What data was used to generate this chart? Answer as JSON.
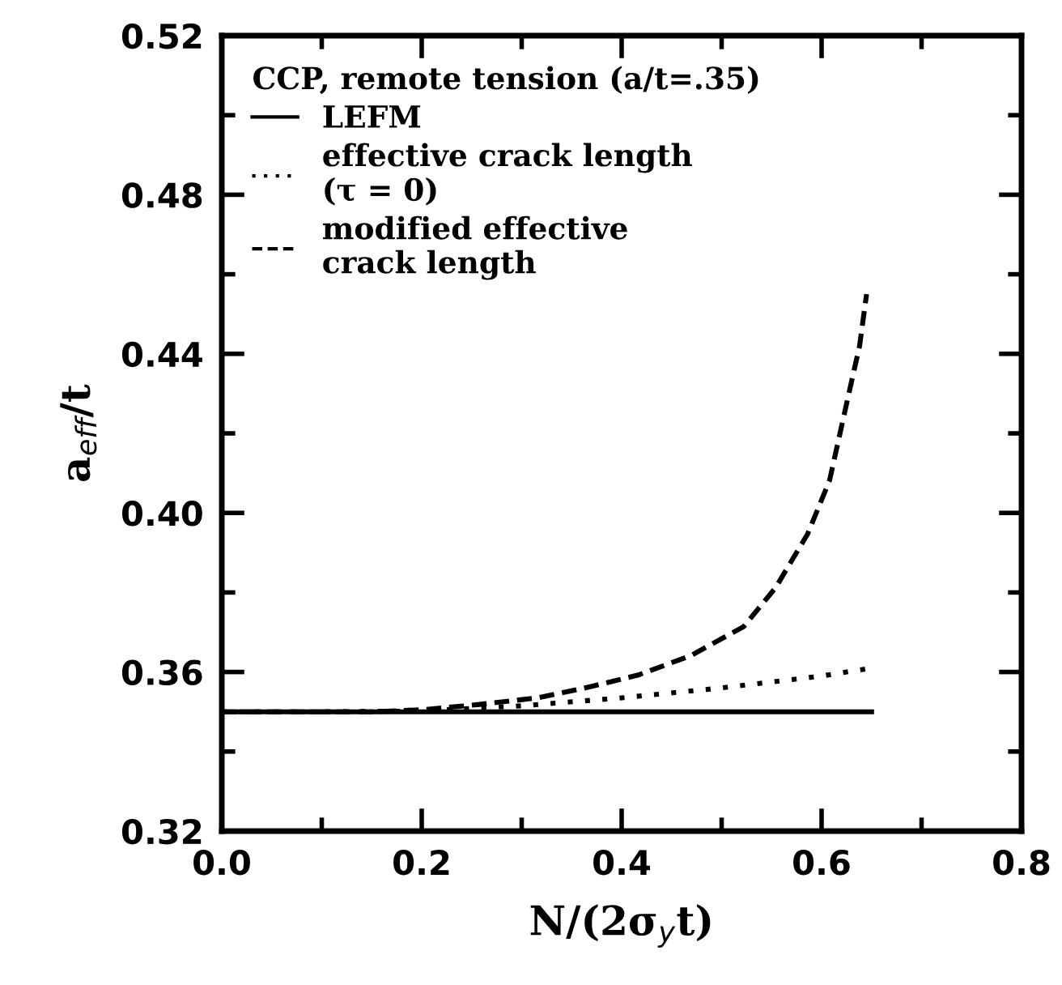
{
  "chart_data": {
    "type": "line",
    "xlabel": "N/(2σ$_{y}$t)",
    "ylabel": "a$_{eff}$/t",
    "legend_title": "CCP, remote tension (a/t=.35)",
    "legend": "top left",
    "xlim": [
      0.0,
      0.8
    ],
    "ylim": [
      0.32,
      0.52
    ],
    "xticks": [
      {
        "value": 0.0,
        "label": "0.0"
      },
      {
        "value": 0.1,
        "label": null
      },
      0.2,
      {
        "value": 0.3,
        "label": null
      },
      0.4,
      {
        "value": 0.5,
        "label": null
      },
      0.6,
      {
        "value": 0.7,
        "label": null
      },
      0.8
    ],
    "yticks": [
      0.32,
      {
        "value": 0.34,
        "label": null
      },
      0.36,
      {
        "value": 0.38,
        "label": null
      },
      {
        "value": 0.4,
        "label": "0.40"
      },
      {
        "value": 0.42,
        "label": null
      },
      0.44,
      {
        "value": 0.46,
        "label": null
      },
      0.48,
      {
        "value": 0.5,
        "label": null
      },
      0.52
    ],
    "grid": false,
    "series": [
      {
        "name": "LEFM",
        "color": "#000000",
        "line_style": "solid",
        "x": [
          0.0,
          0.65
        ],
        "values": [
          0.35,
          0.35
        ]
      },
      {
        "name": "effective crack length\n(τ = 0)",
        "color": "#000000",
        "line_style": "dotted",
        "x": [
          0.0,
          0.1,
          0.2,
          0.3,
          0.4,
          0.5,
          0.6,
          0.65
        ],
        "values": [
          0.35,
          0.35,
          0.3502,
          0.3515,
          0.3535,
          0.356,
          0.359,
          0.361
        ]
      },
      {
        "name": "modified effective\ncrack length",
        "color": "#000000",
        "line_style": "dashed",
        "x": [
          0.0,
          0.15,
          0.2,
          0.256,
          0.316,
          0.362,
          0.416,
          0.469,
          0.522,
          0.554,
          0.586,
          0.608,
          0.626,
          0.638,
          0.645
        ],
        "values": [
          0.35,
          0.35,
          0.3505,
          0.3518,
          0.3535,
          0.3559,
          0.3592,
          0.3641,
          0.3714,
          0.3812,
          0.3947,
          0.4082,
          0.4286,
          0.442,
          0.455
        ]
      }
    ]
  }
}
